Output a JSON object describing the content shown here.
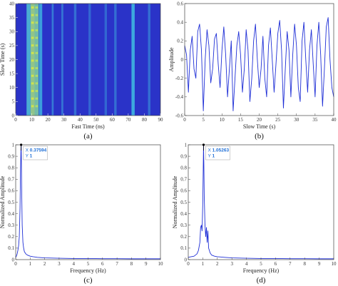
{
  "colors": {
    "line": "#1f2fd6",
    "heat_low": "#2a33c8",
    "heat_mid": "#3fb6e0",
    "heat_high": "#d8e845",
    "tip_bg": "#ffffff",
    "tip_text": "#1f6fd6"
  },
  "chart_data": [
    {
      "id": "a",
      "type": "heatmap",
      "caption": "(a)",
      "xlabel": "Fast Time (ns)",
      "ylabel": "Slow Time (s)",
      "xlim": [
        0,
        90
      ],
      "ylim": [
        0,
        40
      ],
      "xticks": [
        0,
        10,
        20,
        30,
        40,
        50,
        60,
        70,
        80,
        90
      ],
      "yticks": [
        0,
        5,
        10,
        15,
        20,
        25,
        30,
        35,
        40
      ],
      "columns": [
        {
          "x": 8,
          "width": 2.5,
          "level": 0.55
        },
        {
          "x": 10.5,
          "width": 2.5,
          "level": 0.8
        },
        {
          "x": 13,
          "width": 2.5,
          "level": 0.7
        },
        {
          "x": 15.5,
          "width": 2,
          "level": 0.45
        },
        {
          "x": 23,
          "width": 1.2,
          "level": 0.3
        },
        {
          "x": 29,
          "width": 1.2,
          "level": 0.28
        },
        {
          "x": 37,
          "width": 1.5,
          "level": 0.25
        },
        {
          "x": 46,
          "width": 1.5,
          "level": 0.22
        },
        {
          "x": 56,
          "width": 1.5,
          "level": 0.22
        },
        {
          "x": 62,
          "width": 1.5,
          "level": 0.25
        },
        {
          "x": 73,
          "width": 2,
          "level": 0.5
        },
        {
          "x": 83,
          "width": 1.5,
          "level": 0.25
        }
      ]
    },
    {
      "id": "b",
      "type": "line",
      "caption": "(b)",
      "xlabel": "Slow Time (s)",
      "ylabel": "Amplitude",
      "xlim": [
        0,
        40
      ],
      "ylim": [
        -0.6,
        0.6
      ],
      "xticks": [
        0,
        5,
        10,
        15,
        20,
        25,
        30,
        35,
        40
      ],
      "yticks": [
        -0.6,
        -0.4,
        -0.2,
        0,
        0.2,
        0.4,
        0.6
      ],
      "x": [
        0,
        0.5,
        1,
        1.5,
        2,
        2.5,
        3,
        3.5,
        4,
        4.5,
        5,
        5.5,
        6,
        6.5,
        7,
        7.5,
        8,
        8.5,
        9,
        9.5,
        10,
        10.5,
        11,
        11.5,
        12,
        12.5,
        13,
        13.5,
        14,
        14.5,
        15,
        15.5,
        16,
        16.5,
        17,
        17.5,
        18,
        18.5,
        19,
        19.5,
        20,
        20.5,
        21,
        21.5,
        22,
        22.5,
        23,
        23.5,
        24,
        24.5,
        25,
        25.5,
        26,
        26.5,
        27,
        27.5,
        28,
        28.5,
        29,
        29.5,
        30,
        30.5,
        31,
        31.5,
        32,
        32.5,
        33,
        33.5,
        34,
        34.5,
        35,
        35.5,
        36,
        36.5,
        37,
        37.5,
        38,
        38.5,
        39,
        39.5,
        40
      ],
      "y": [
        0.15,
        0.05,
        -0.35,
        0.1,
        0.25,
        -0.1,
        -0.2,
        0.3,
        0.38,
        0.1,
        -0.55,
        0.0,
        0.32,
        0.15,
        -0.25,
        -0.1,
        0.22,
        0.28,
        -0.05,
        -0.3,
        0.1,
        0.35,
        0.05,
        -0.4,
        -0.1,
        0.2,
        -0.55,
        -0.2,
        0.15,
        0.3,
        0.05,
        -0.35,
        -0.1,
        0.32,
        0.1,
        -0.45,
        -0.2,
        0.2,
        0.38,
        0.0,
        -0.3,
        -0.1,
        0.25,
        -0.2,
        -0.4,
        0.15,
        0.34,
        0.0,
        -0.35,
        -0.05,
        0.28,
        0.42,
        0.1,
        -0.52,
        -0.1,
        0.3,
        0.1,
        -0.4,
        0.05,
        0.38,
        0.15,
        -0.3,
        -0.45,
        0.2,
        0.4,
        0.0,
        -0.35,
        0.1,
        0.32,
        -0.05,
        -0.4,
        0.15,
        0.4,
        0.05,
        -0.5,
        -0.1,
        0.35,
        0.45,
        0.0,
        -0.3,
        -0.4
      ]
    },
    {
      "id": "c",
      "type": "line",
      "caption": "(c)",
      "xlabel": "Frequency (Hz)",
      "ylabel": "Normalized Amplitude",
      "xlim": [
        0,
        10
      ],
      "ylim": [
        0,
        1
      ],
      "xticks": [
        0,
        1,
        2,
        3,
        4,
        5,
        6,
        7,
        8,
        9,
        10
      ],
      "yticks": [
        0,
        0.1,
        0.2,
        0.3,
        0.4,
        0.5,
        0.6,
        0.7,
        0.8,
        0.9,
        1
      ],
      "x": [
        0,
        0.05,
        0.1,
        0.15,
        0.2,
        0.25,
        0.3,
        0.33,
        0.36,
        0.376,
        0.39,
        0.42,
        0.45,
        0.5,
        0.55,
        0.6,
        0.7,
        0.8,
        1.0,
        1.2,
        1.5,
        2,
        3,
        4,
        5,
        6,
        7,
        8,
        9,
        10
      ],
      "y": [
        0.02,
        0.03,
        0.05,
        0.08,
        0.12,
        0.2,
        0.45,
        0.75,
        0.95,
        1.0,
        0.9,
        0.55,
        0.3,
        0.15,
        0.1,
        0.07,
        0.05,
        0.04,
        0.03,
        0.025,
        0.02,
        0.015,
        0.012,
        0.01,
        0.01,
        0.008,
        0.008,
        0.007,
        0.007,
        0.007
      ],
      "datatip": {
        "x_label": "X",
        "x_value": "0.37594",
        "y_label": "Y",
        "y_value": "1",
        "x": 0.376,
        "y": 1
      }
    },
    {
      "id": "d",
      "type": "line",
      "caption": "(d)",
      "xlabel": "Frequency (Hz)",
      "ylabel": "Normalized Amplitude",
      "xlim": [
        0,
        10
      ],
      "ylim": [
        0,
        1
      ],
      "xticks": [
        0,
        1,
        2,
        3,
        4,
        5,
        6,
        7,
        8,
        9,
        10
      ],
      "yticks": [
        0,
        0.1,
        0.2,
        0.3,
        0.4,
        0.5,
        0.6,
        0.7,
        0.8,
        0.9,
        1
      ],
      "x": [
        0,
        0.2,
        0.4,
        0.6,
        0.7,
        0.8,
        0.85,
        0.9,
        0.95,
        1.0,
        1.03,
        1.05,
        1.07,
        1.1,
        1.15,
        1.2,
        1.25,
        1.3,
        1.35,
        1.4,
        1.5,
        1.6,
        1.8,
        2.0,
        2.5,
        3,
        4,
        5,
        6,
        7,
        8,
        9,
        10
      ],
      "y": [
        0.02,
        0.025,
        0.03,
        0.05,
        0.08,
        0.15,
        0.28,
        0.3,
        0.25,
        0.5,
        0.8,
        1.0,
        0.85,
        0.55,
        0.3,
        0.2,
        0.28,
        0.15,
        0.25,
        0.1,
        0.06,
        0.04,
        0.03,
        0.025,
        0.02,
        0.015,
        0.012,
        0.01,
        0.01,
        0.008,
        0.008,
        0.007,
        0.007
      ],
      "datatip": {
        "x_label": "X",
        "x_value": "1.05263",
        "y_label": "Y",
        "y_value": "1",
        "x": 1.05263,
        "y": 1
      }
    }
  ]
}
